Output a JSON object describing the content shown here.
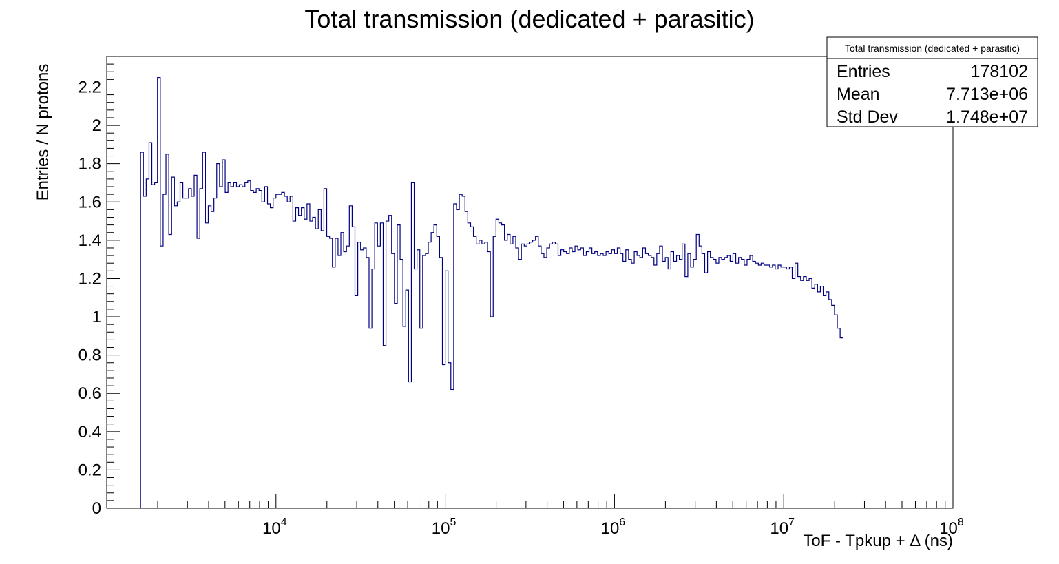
{
  "chart_data": {
    "type": "histogram",
    "title": "Total transmission (dedicated + parasitic)",
    "xlabel": "ToF - Tpkup + Δ (ns)",
    "ylabel": "Entries / N protons",
    "x_scale": "log",
    "xlim": [
      1000,
      100000000
    ],
    "ylim": [
      0,
      2.36
    ],
    "x_tick_labels": [
      {
        "value": 10000,
        "base": "10",
        "exp": "4"
      },
      {
        "value": 100000,
        "base": "10",
        "exp": "5"
      },
      {
        "value": 1000000,
        "base": "10",
        "exp": "6"
      },
      {
        "value": 10000000,
        "base": "10",
        "exp": "7"
      },
      {
        "value": 100000000,
        "base": "10",
        "exp": "8"
      }
    ],
    "y_ticks": [
      0,
      0.2,
      0.4,
      0.6,
      0.8,
      1,
      1.2,
      1.4,
      1.6,
      1.8,
      2,
      2.2
    ],
    "y_tick_labels": [
      "0",
      "0.2",
      "0.4",
      "0.6",
      "0.8",
      "1",
      "1.2",
      "1.4",
      "1.6",
      "1.8",
      "2",
      "2.2"
    ],
    "line_color": "#000080",
    "grid": false,
    "legend": "none",
    "bins_per_decade": 60,
    "first_bin_low_edge": 1584.9,
    "bin_values": [
      1.86,
      1.63,
      1.72,
      1.91,
      1.69,
      1.7,
      2.25,
      1.37,
      1.64,
      1.85,
      1.43,
      1.73,
      1.58,
      1.6,
      1.7,
      1.62,
      1.62,
      1.67,
      1.63,
      1.74,
      1.41,
      1.67,
      1.86,
      1.49,
      1.58,
      1.55,
      1.62,
      1.8,
      1.68,
      1.82,
      1.65,
      1.7,
      1.68,
      1.7,
      1.68,
      1.69,
      1.68,
      1.7,
      1.71,
      1.66,
      1.65,
      1.67,
      1.66,
      1.6,
      1.68,
      1.59,
      1.57,
      1.62,
      1.64,
      1.64,
      1.65,
      1.63,
      1.6,
      1.63,
      1.5,
      1.57,
      1.53,
      1.57,
      1.51,
      1.59,
      1.5,
      1.52,
      1.46,
      1.56,
      1.45,
      1.67,
      1.42,
      1.41,
      1.26,
      1.41,
      1.32,
      1.44,
      1.34,
      1.37,
      1.58,
      1.47,
      1.11,
      1.39,
      1.35,
      1.36,
      1.31,
      0.94,
      1.25,
      1.49,
      1.37,
      1.49,
      0.85,
      1.5,
      1.53,
      1.33,
      1.07,
      1.48,
      1.3,
      0.95,
      1.14,
      0.66,
      1.7,
      1.25,
      1.35,
      0.94,
      1.32,
      1.33,
      1.39,
      1.44,
      1.48,
      1.42,
      1.31,
      0.75,
      1.24,
      0.76,
      0.62,
      1.59,
      1.56,
      1.64,
      1.63,
      1.55,
      1.49,
      1.47,
      1.42,
      1.38,
      1.4,
      1.38,
      1.39,
      1.34,
      1.0,
      1.42,
      1.51,
      1.49,
      1.48,
      1.4,
      1.43,
      1.38,
      1.42,
      1.36,
      1.3,
      1.38,
      1.37,
      1.38,
      1.39,
      1.4,
      1.42,
      1.37,
      1.33,
      1.31,
      1.36,
      1.38,
      1.39,
      1.38,
      1.32,
      1.35,
      1.34,
      1.33,
      1.36,
      1.34,
      1.37,
      1.35,
      1.36,
      1.32,
      1.34,
      1.36,
      1.33,
      1.34,
      1.32,
      1.33,
      1.32,
      1.34,
      1.33,
      1.35,
      1.33,
      1.36,
      1.33,
      1.29,
      1.35,
      1.3,
      1.28,
      1.34,
      1.32,
      1.31,
      1.36,
      1.33,
      1.32,
      1.31,
      1.27,
      1.33,
      1.37,
      1.29,
      1.31,
      1.25,
      1.34,
      1.29,
      1.32,
      1.3,
      1.38,
      1.21,
      1.33,
      1.26,
      1.3,
      1.43,
      1.37,
      1.33,
      1.23,
      1.34,
      1.31,
      1.3,
      1.28,
      1.31,
      1.3,
      1.31,
      1.32,
      1.29,
      1.33,
      1.28,
      1.31,
      1.3,
      1.27,
      1.3,
      1.32,
      1.29,
      1.28,
      1.27,
      1.28,
      1.27,
      1.27,
      1.26,
      1.27,
      1.25,
      1.27,
      1.26,
      1.26,
      1.25,
      1.26,
      1.2,
      1.28,
      1.21,
      1.19,
      1.21,
      1.19,
      1.2,
      1.15,
      1.17,
      1.13,
      1.16,
      1.11,
      1.13,
      1.09,
      1.06,
      1.01,
      0.94,
      0.89
    ]
  },
  "stats_box": {
    "title": "Total transmission (dedicated + parasitic)",
    "rows": [
      {
        "label": "Entries",
        "value": "178102"
      },
      {
        "label": "Mean",
        "value": "7.713e+06"
      },
      {
        "label": "Std Dev",
        "value": "1.748e+07"
      }
    ]
  }
}
